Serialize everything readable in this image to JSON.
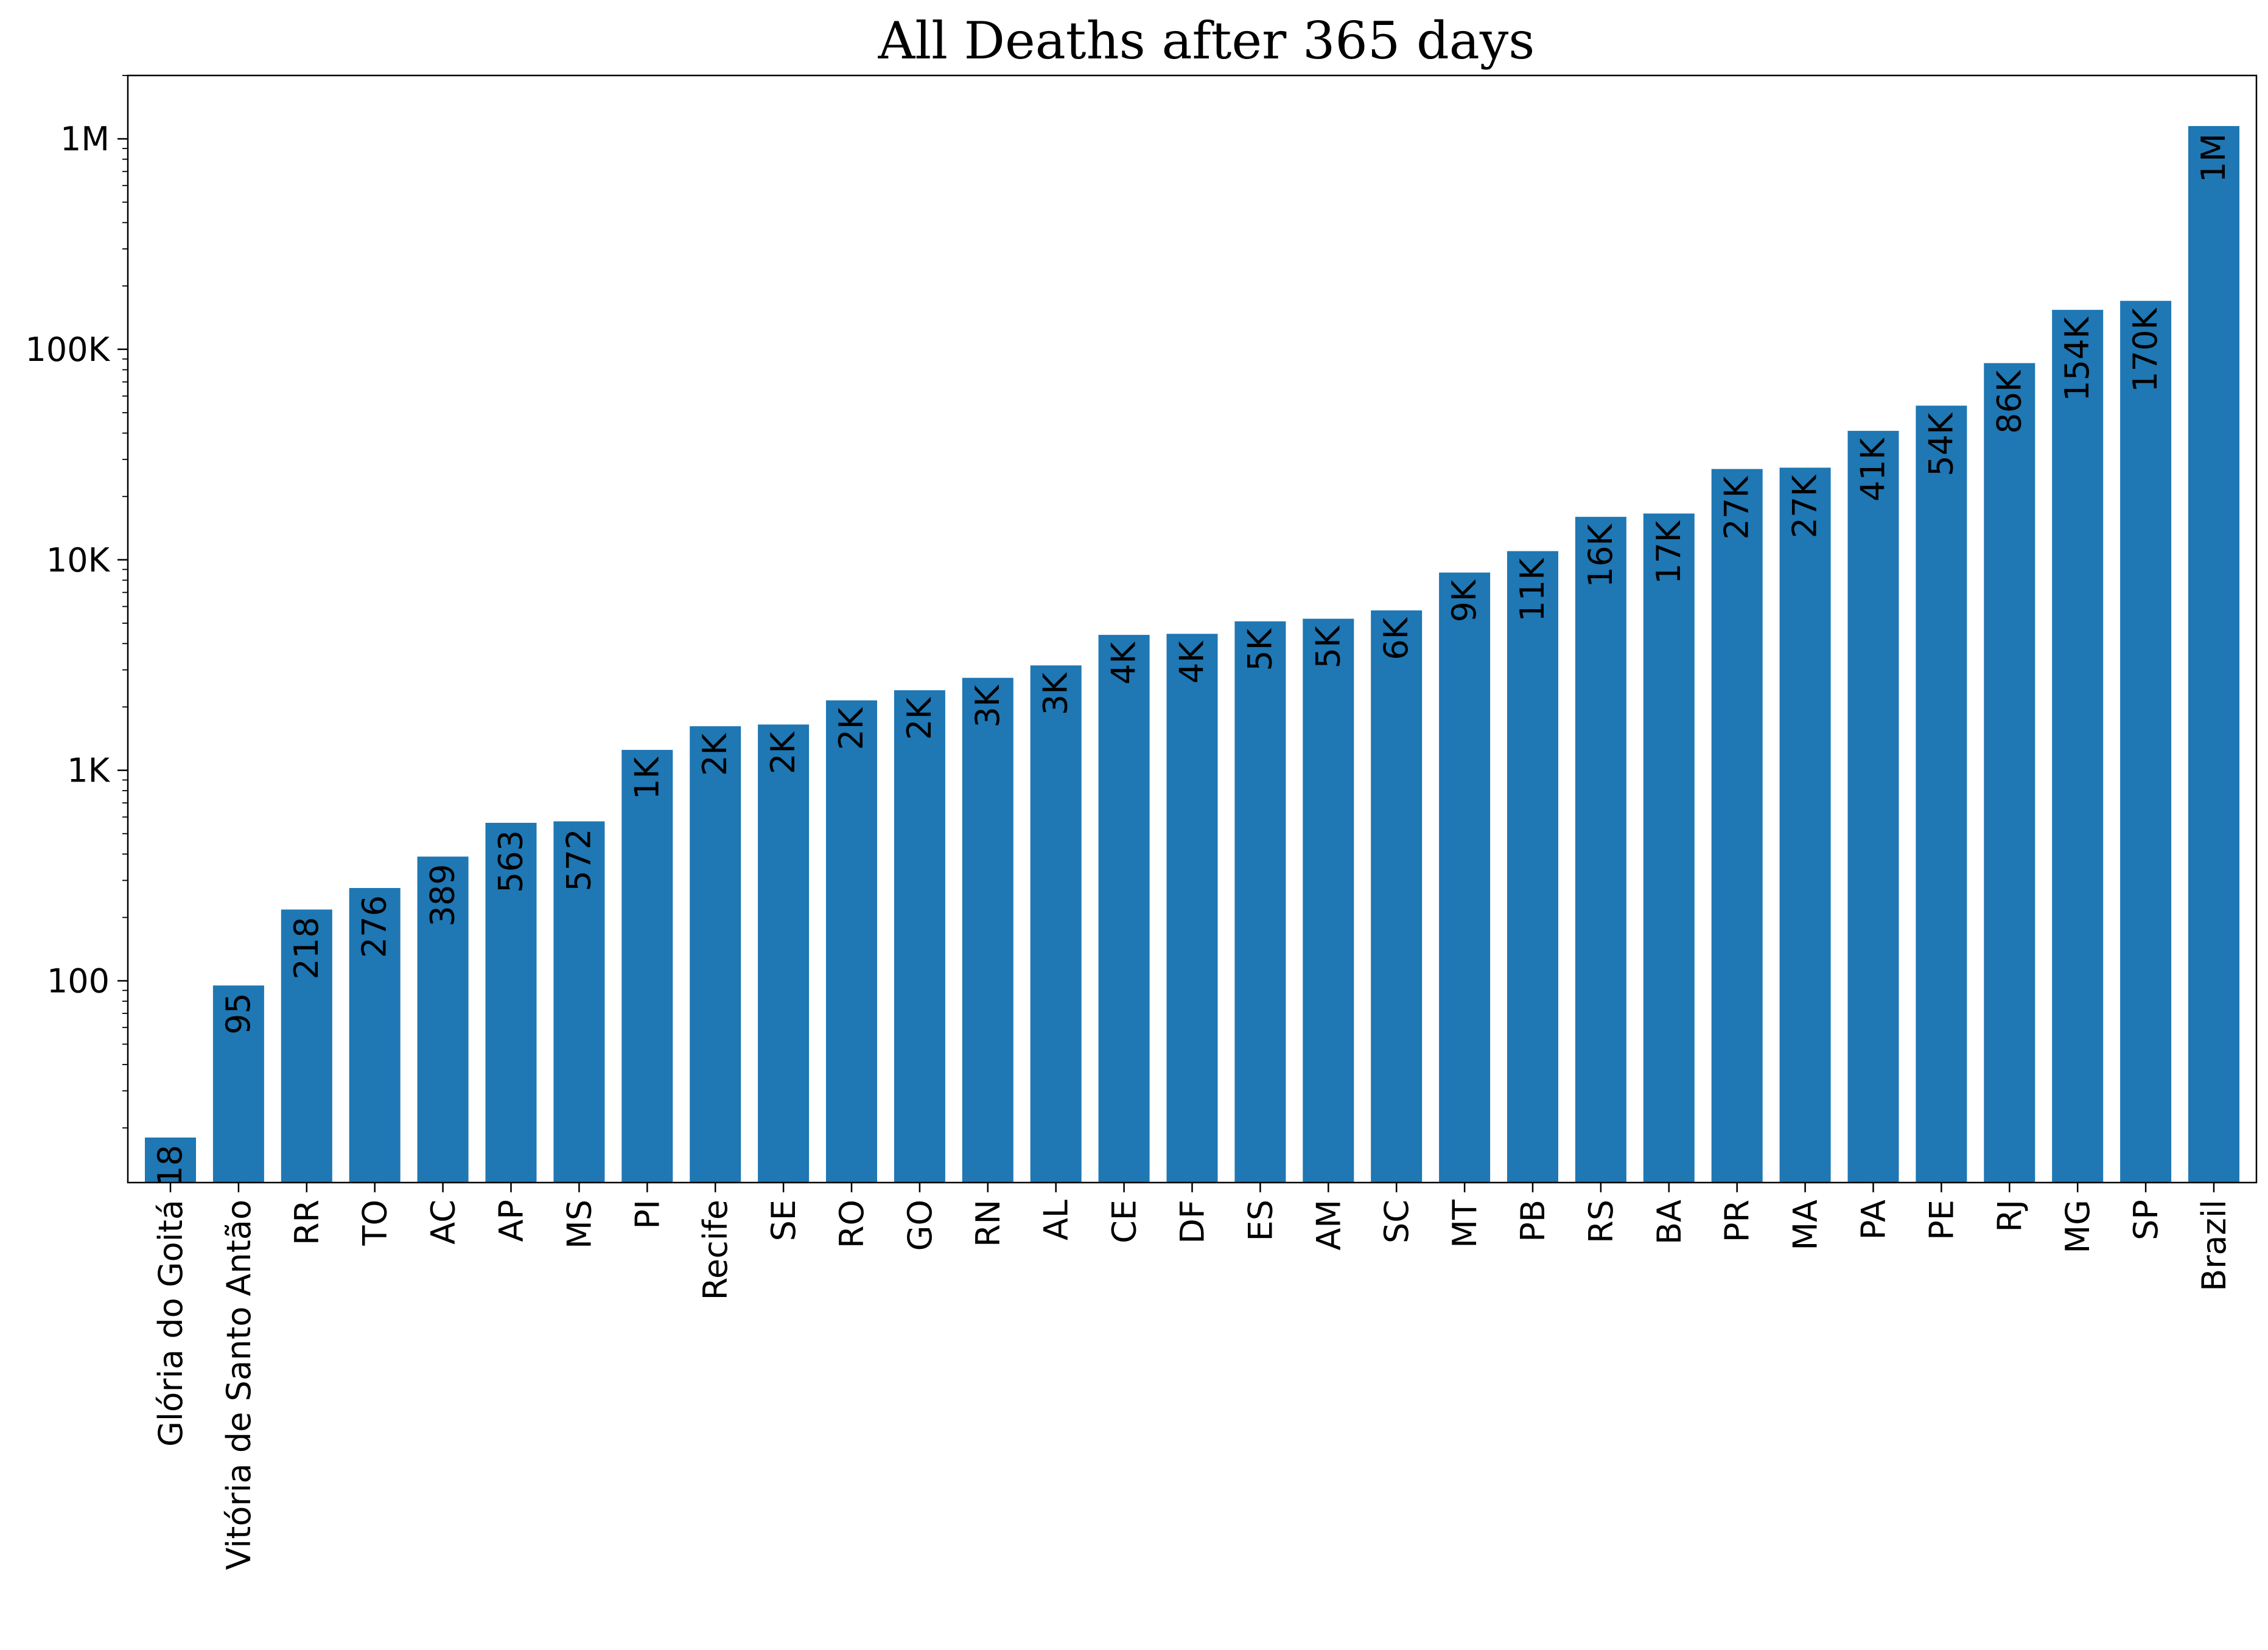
{
  "chart_data": {
    "type": "bar",
    "title": "All Deaths after 365 days",
    "xlabel": "",
    "ylabel": "",
    "yscale": "log",
    "ylim": [
      11,
      2000000
    ],
    "yticks": [
      {
        "value": 100,
        "label": "100"
      },
      {
        "value": 1000,
        "label": "1K"
      },
      {
        "value": 10000,
        "label": "10K"
      },
      {
        "value": 100000,
        "label": "100K"
      },
      {
        "value": 1000000,
        "label": "1M"
      }
    ],
    "grid": false,
    "legend": "none",
    "bar_color": "#1f77b4",
    "categories": [
      "Glória do Goitá",
      "Vitória de Santo Antão",
      "RR",
      "TO",
      "AC",
      "AP",
      "MS",
      "PI",
      "Recife",
      "SE",
      "RO",
      "GO",
      "RN",
      "AL",
      "CE",
      "DF",
      "ES",
      "AM",
      "SC",
      "MT",
      "PB",
      "RS",
      "BA",
      "PR",
      "MA",
      "PA",
      "PE",
      "RJ",
      "MG",
      "SP",
      "Brazil"
    ],
    "values": [
      18,
      95,
      218,
      276,
      389,
      563,
      572,
      1250,
      1620,
      1650,
      2150,
      2400,
      2750,
      3150,
      4400,
      4450,
      5100,
      5250,
      5750,
      8700,
      11000,
      16000,
      16600,
      27000,
      27400,
      41000,
      54000,
      86000,
      154000,
      170000,
      1150000
    ],
    "value_labels": [
      "18",
      "95",
      "218",
      "276",
      "389",
      "563",
      "572",
      "1K",
      "2K",
      "2K",
      "2K",
      "2K",
      "3K",
      "3K",
      "4K",
      "4K",
      "5K",
      "5K",
      "6K",
      "9K",
      "11K",
      "16K",
      "17K",
      "27K",
      "27K",
      "41K",
      "54K",
      "86K",
      "154K",
      "170K",
      "1M"
    ]
  }
}
